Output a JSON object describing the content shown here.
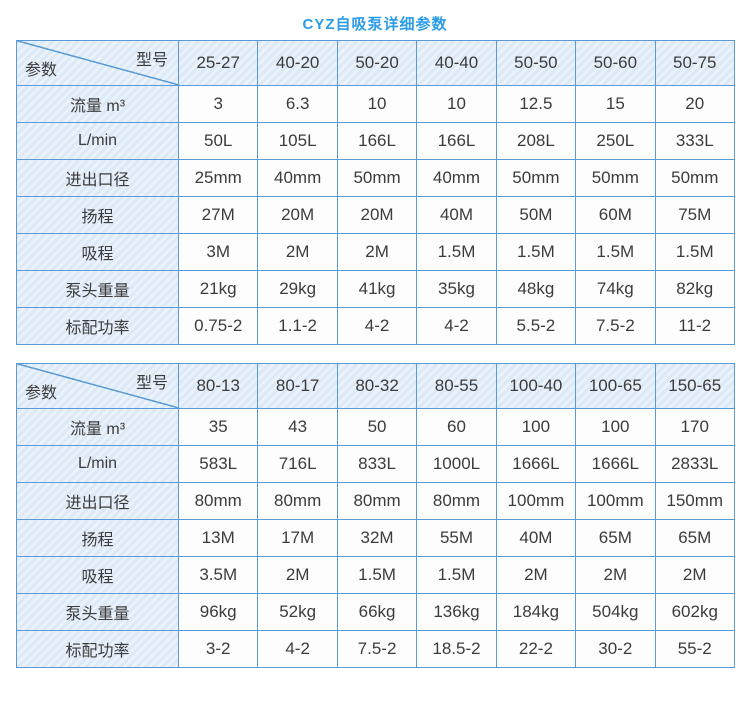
{
  "title": "CYZ自吸泵详细参数",
  "colors": {
    "title": "#2b9ce8",
    "border": "#5b9bd5",
    "striped_cell_dark": "#dce9f6",
    "striped_cell_light": "#ebf2fb",
    "data_cell": "#fdfdfe",
    "text": "#3c3c3c"
  },
  "corner": {
    "model_label": "型号",
    "param_label": "参数"
  },
  "row_labels": [
    "流量  m³",
    "L/min",
    "进出口径",
    "扬程",
    "吸程",
    "泵头重量",
    "标配功率"
  ],
  "tables": [
    {
      "models": [
        "25-27",
        "40-20",
        "50-20",
        "40-40",
        "50-50",
        "50-60",
        "50-75"
      ],
      "rows": [
        [
          "3",
          "6.3",
          "10",
          "10",
          "12.5",
          "15",
          "20"
        ],
        [
          "50L",
          "105L",
          "166L",
          "166L",
          "208L",
          "250L",
          "333L"
        ],
        [
          "25mm",
          "40mm",
          "50mm",
          "40mm",
          "50mm",
          "50mm",
          "50mm"
        ],
        [
          "27M",
          "20M",
          "20M",
          "40M",
          "50M",
          "60M",
          "75M"
        ],
        [
          "3M",
          "2M",
          "2M",
          "1.5M",
          "1.5M",
          "1.5M",
          "1.5M"
        ],
        [
          "21kg",
          "29kg",
          "41kg",
          "35kg",
          "48kg",
          "74kg",
          "82kg"
        ],
        [
          "0.75-2",
          "1.1-2",
          "4-2",
          "4-2",
          "5.5-2",
          "7.5-2",
          "11-2"
        ]
      ]
    },
    {
      "models": [
        "80-13",
        "80-17",
        "80-32",
        "80-55",
        "100-40",
        "100-65",
        "150-65"
      ],
      "rows": [
        [
          "35",
          "43",
          "50",
          "60",
          "100",
          "100",
          "170"
        ],
        [
          "583L",
          "716L",
          "833L",
          "1000L",
          "1666L",
          "1666L",
          "2833L"
        ],
        [
          "80mm",
          "80mm",
          "80mm",
          "80mm",
          "100mm",
          "100mm",
          "150mm"
        ],
        [
          "13M",
          "17M",
          "32M",
          "55M",
          "40M",
          "65M",
          "65M"
        ],
        [
          "3.5M",
          "2M",
          "1.5M",
          "1.5M",
          "2M",
          "2M",
          "2M"
        ],
        [
          "96kg",
          "52kg",
          "66kg",
          "136kg",
          "184kg",
          "504kg",
          "602kg"
        ],
        [
          "3-2",
          "4-2",
          "7.5-2",
          "18.5-2",
          "22-2",
          "30-2",
          "55-2"
        ]
      ]
    }
  ]
}
